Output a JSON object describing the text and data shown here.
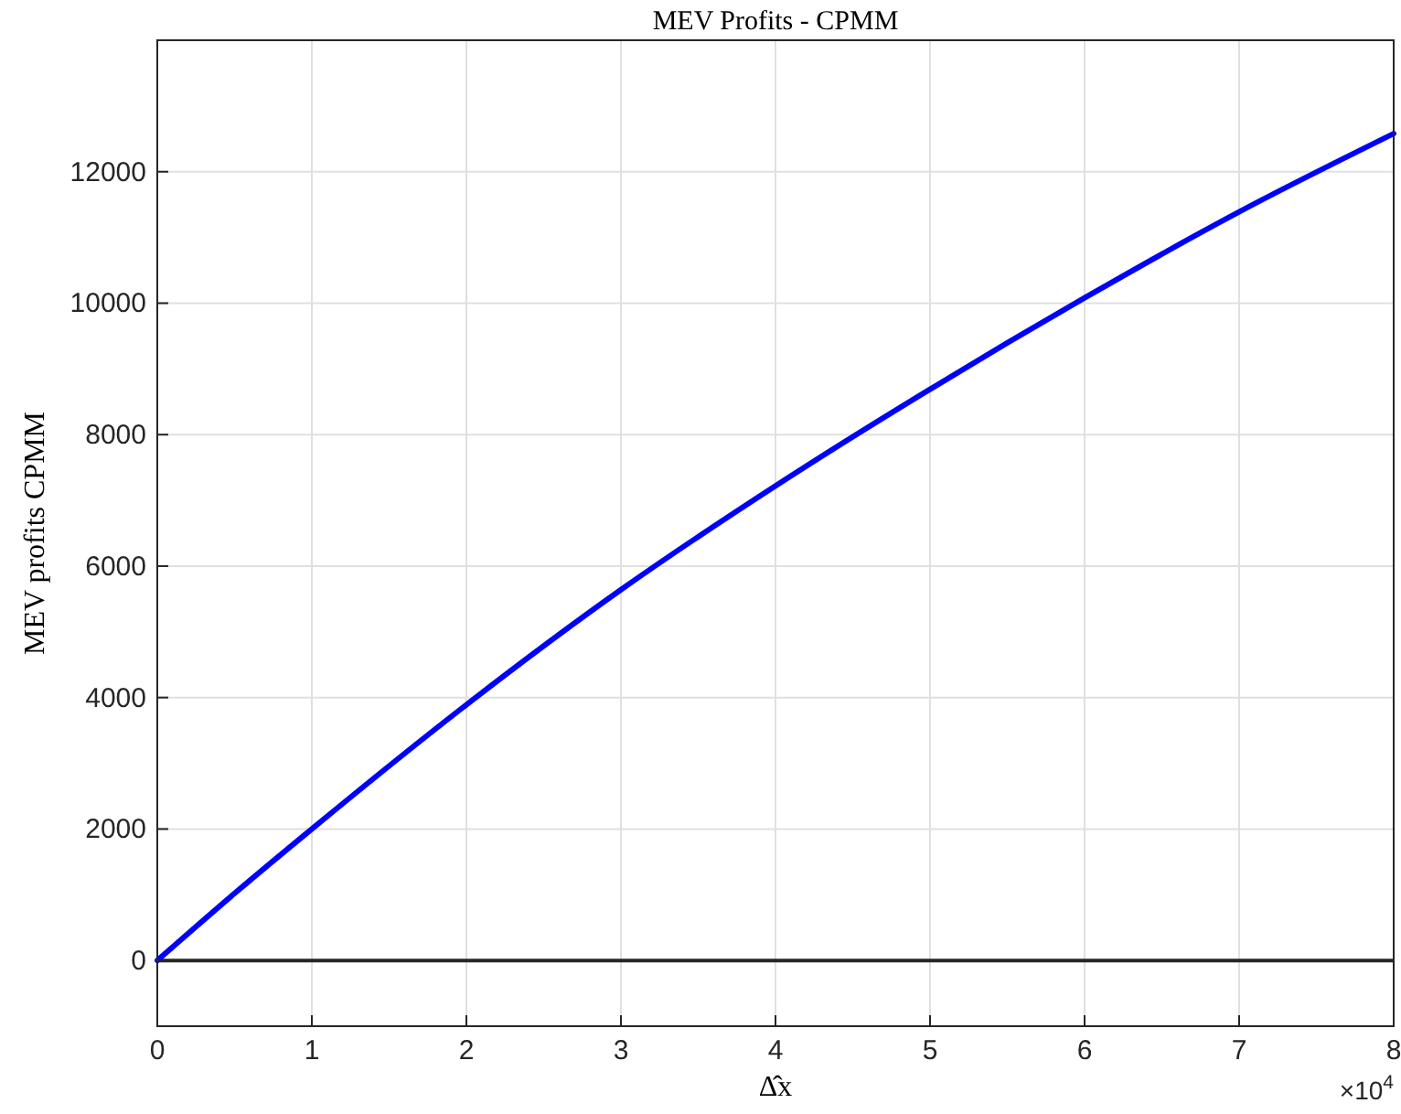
{
  "chart_data": {
    "type": "line",
    "title": "MEV Profits - CPMM",
    "xlabel": "Δ̂x",
    "ylabel": "MEV profits CPMM",
    "x": [
      0,
      0.5,
      1,
      2,
      3,
      4,
      5,
      6,
      7,
      8
    ],
    "series": [
      {
        "color": "#0000ff",
        "values": [
          0,
          1020,
          2000,
          3890,
          5640,
          7220,
          8690,
          10080,
          11390,
          12580
        ]
      }
    ],
    "xlim": [
      0,
      8
    ],
    "ylim": [
      -1000,
      14000
    ],
    "xticks": [
      0,
      1,
      2,
      3,
      4,
      5,
      6,
      7,
      8
    ],
    "yticks": [
      0,
      2000,
      4000,
      6000,
      8000,
      10000,
      12000
    ],
    "ref_lines": [
      {
        "axis": "y",
        "value": 0,
        "color": "#262626"
      }
    ],
    "annotations": [
      "×10$^{4}$"
    ],
    "grid": true,
    "marker": "none",
    "line_style": "solid"
  }
}
